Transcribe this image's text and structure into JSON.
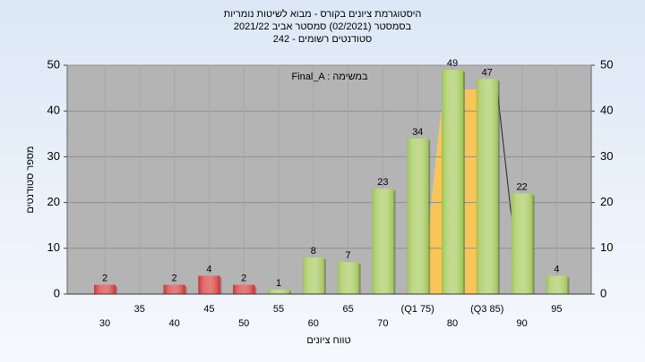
{
  "chart_data": {
    "type": "bar",
    "title": "היסטוגרמת ציונים בקורס - מבוא לשיטות נומריות",
    "subtitle": "בסמסטר  (02/2021)  סמסטר אביב 2021/22",
    "subtitle2": "סטודנטים רשומים - 242",
    "annotation": "Final_A : במשימה",
    "xlabel": "טווח ציונים",
    "ylabel": "מספר סטודנטים",
    "categories": [
      "30",
      "35",
      "40",
      "45",
      "50",
      "55",
      "60",
      "65",
      "70",
      "(Q1 75)",
      "80",
      "(Q3 85)",
      "90",
      "95"
    ],
    "values": [
      2,
      null,
      2,
      4,
      2,
      1,
      8,
      7,
      23,
      34,
      49,
      47,
      22,
      4
    ],
    "colors": [
      "#d42a2a",
      null,
      "#d42a2a",
      "#d42a2a",
      "#d42a2a",
      "#9cc44c",
      "#9cc44c",
      "#9cc44c",
      "#9cc44c",
      "#9cc44c",
      "#9cc44c",
      "#9cc44c",
      "#9cc44c",
      "#9cc44c"
    ],
    "ylim": [
      0,
      50
    ],
    "yticks": [
      0,
      10,
      20,
      30,
      40,
      50
    ],
    "grid": true
  }
}
